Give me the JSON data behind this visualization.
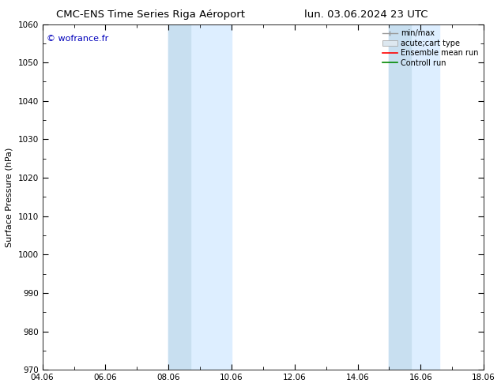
{
  "title_left": "CMC-ENS Time Series Riga Aéroport",
  "title_right": "lun. 03.06.2024 23 UTC",
  "ylabel": "Surface Pressure (hPa)",
  "ylim": [
    970,
    1060
  ],
  "yticks": [
    970,
    980,
    990,
    1000,
    1010,
    1020,
    1030,
    1040,
    1050,
    1060
  ],
  "xlim_start": 0,
  "xlim_end": 14,
  "xtick_labels": [
    "04.06",
    "06.06",
    "08.06",
    "10.06",
    "12.06",
    "14.06",
    "16.06",
    "18.06"
  ],
  "xtick_positions": [
    0,
    2,
    4,
    6,
    8,
    10,
    12,
    14
  ],
  "blue_bands": [
    {
      "xmin": 4.0,
      "xmax": 4.7,
      "xmin2": 4.7,
      "xmax2": 6.0
    },
    {
      "xmin": 11.0,
      "xmax": 11.7,
      "xmin2": 11.7,
      "xmax2": 12.6
    }
  ],
  "band_color_dark": "#c8dff0",
  "band_color_light": "#ddeeff",
  "copyright_text": "© wofrance.fr",
  "copyright_color": "#0000bb",
  "legend_entries": [
    "min/max",
    "acute;cart type",
    "Ensemble mean run",
    "Controll run"
  ],
  "legend_colors_line": [
    "#999999",
    "#cccccc",
    "#ff0000",
    "#008800"
  ],
  "background_color": "#ffffff",
  "title_fontsize": 9.5,
  "axis_label_fontsize": 8,
  "tick_fontsize": 7.5,
  "legend_fontsize": 7,
  "copyright_fontsize": 8
}
